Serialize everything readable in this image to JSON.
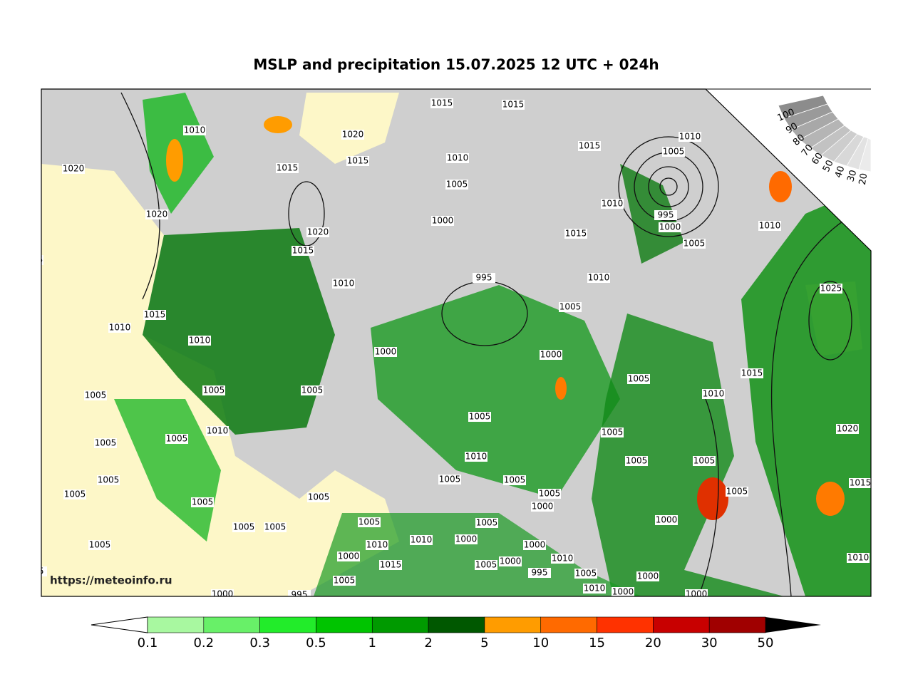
{
  "title": "MSLP and precipitation 15.07.2025 12 UTC + 024h",
  "watermark": "https://meteoinfo.ru",
  "isobar_labels": [
    1010,
    1020,
    1020,
    1015,
    1020,
    1015,
    1020,
    1015,
    1010,
    1015,
    1010,
    1010,
    1015,
    1015,
    1010,
    1005,
    1000,
    1015,
    1010,
    1005,
    1010,
    995,
    1000,
    1005,
    1015,
    1010,
    1010,
    995,
    1005,
    1025,
    1000,
    1000,
    1015,
    1005,
    1010,
    1005,
    1005,
    1005,
    1005,
    1010,
    1005,
    1005,
    1005,
    1020,
    1010,
    1005,
    1005,
    1005,
    1005,
    1005,
    1005,
    1005,
    1015,
    1005,
    1005,
    1005,
    1000,
    1005,
    1005,
    1005,
    1005,
    1000,
    1005,
    1010,
    1010,
    1000,
    1000,
    1010,
    1000,
    1015,
    1005,
    1000,
    995,
    1010,
    1005,
    1000,
    1005,
    1010,
    1000,
    1000,
    995,
    1000,
    1005,
    995
  ],
  "precip_scale": {
    "ticks": [
      0.1,
      0.2,
      0.3,
      0.5,
      1,
      2,
      5,
      10,
      15,
      20,
      30,
      50
    ],
    "colors": [
      "#a8f8a0",
      "#68f068",
      "#22ec2a",
      "#00c400",
      "#009a00",
      "#005800",
      "#ff9c00",
      "#ff6a00",
      "#ff3200",
      "#c80000",
      "#a00000"
    ]
  },
  "cloud_scale": {
    "labels": [
      100,
      90,
      80,
      70,
      60,
      50,
      40,
      30,
      20
    ],
    "colors": [
      "#8c8c8c",
      "#9a9a9a",
      "#a8a8a8",
      "#b5b5b5",
      "#c2c2c2",
      "#cdcdcd",
      "#d8d8d8",
      "#e2e2e2",
      "#ebebeb"
    ]
  }
}
